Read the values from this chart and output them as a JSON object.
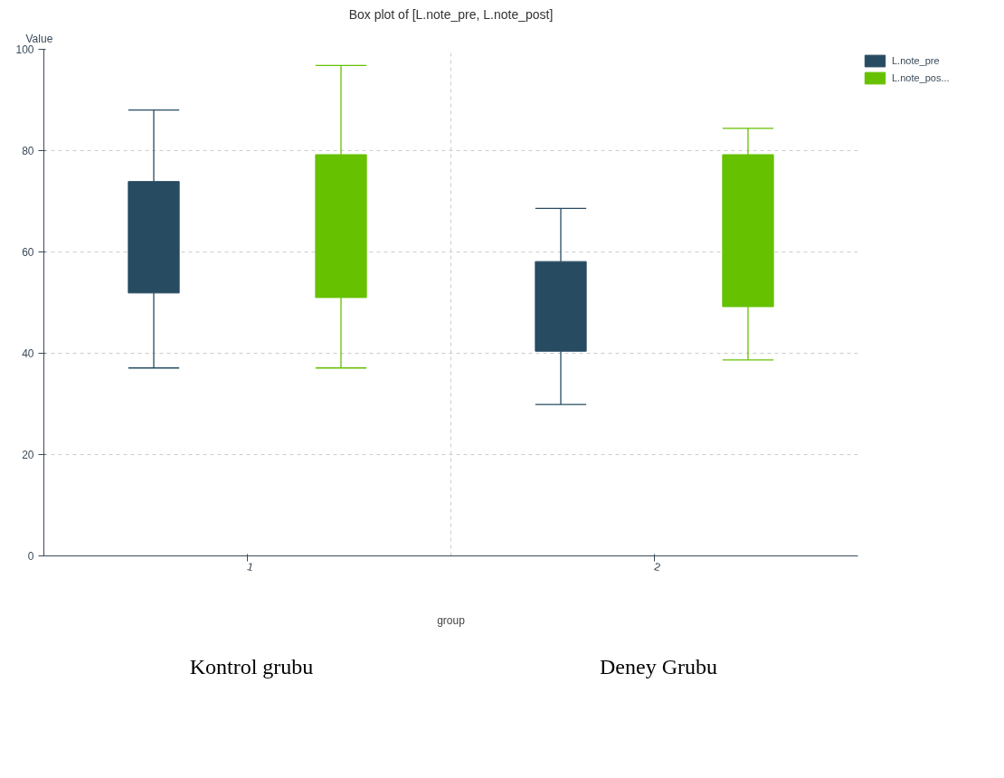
{
  "chart_data": {
    "type": "box",
    "title": "Box plot of [L.note_pre, L.note_post]",
    "xlabel": "group",
    "ylabel": "Value",
    "categories": [
      "1",
      "2"
    ],
    "series": [
      {
        "name": "L.note_pre",
        "color": "#274b61",
        "boxes": [
          {
            "low": 37.1,
            "q1": 51.9,
            "q3": 73.9,
            "high": 88.0
          },
          {
            "low": 29.9,
            "q1": 40.4,
            "q3": 58.1,
            "high": 68.6
          }
        ]
      },
      {
        "name": "L.note_pos...",
        "color": "#66c100",
        "boxes": [
          {
            "low": 37.1,
            "q1": 51.0,
            "q3": 79.2,
            "high": 96.8
          },
          {
            "low": 38.7,
            "q1": 49.2,
            "q3": 79.2,
            "high": 84.4
          }
        ]
      }
    ],
    "ylim": [
      0,
      100
    ],
    "yticks": [
      0,
      20,
      40,
      60,
      80,
      100
    ],
    "grid": true,
    "legend": "top right",
    "annotations": [
      "Kontrol grubu",
      "Deney Grubu"
    ]
  }
}
